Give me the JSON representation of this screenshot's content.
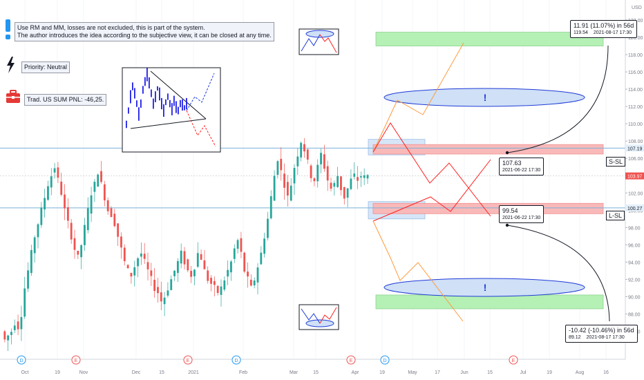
{
  "notes": {
    "system": "Use RM and MM, losses are not excluded, this is part of the system.",
    "author": "The author introduces the idea according to the subjective view, it can be closed at any time.",
    "priority": "Priority: Neutral",
    "pnl": "Trad. US SUM PNL: -46,25."
  },
  "icons": {
    "info": "exclamation-icon",
    "priority": "lightning-icon",
    "pnl": "briefcase-icon",
    "colors": {
      "info": "#2196f3",
      "briefcase": "#e53935"
    }
  },
  "colors": {
    "up": "#26a69a",
    "down": "#ef5350",
    "target_zone": "#b5f0b5",
    "stop_zone": "#f9b9b9",
    "entry_zone": "#cfe2f7",
    "ellipse": "#cfe0f7",
    "ellipse_border": "#1e3ad6",
    "hline": "#79b0d8",
    "bull_path": "#ff9a3c",
    "bear_path": "#ff2020"
  },
  "callouts": {
    "up_target": {
      "main": "11.91 (11.07%) in 56d",
      "price": "119.54",
      "date": "2021-08-17  17:30"
    },
    "up_level": {
      "main": "107.63",
      "date": "2021-06-22  17:30"
    },
    "down_level": {
      "main": "99.54",
      "date": "2021-06-22  17:30"
    },
    "down_target": {
      "main": "-10.42 (-10.46%) in 56d",
      "price": "89.12",
      "date": "2021-08-17  17:30"
    }
  },
  "tags": {
    "s_sl": "S-SL",
    "l_sl": "L-SL",
    "exclaim": "!"
  },
  "chart_data": {
    "type": "candlestick",
    "currency": "USD",
    "y_axis": {
      "range": [
        84,
        124
      ],
      "ticks": [
        86,
        88,
        90,
        92,
        94,
        96,
        98,
        100,
        102,
        104,
        106,
        108,
        110,
        112,
        114,
        116,
        118,
        120,
        122,
        124
      ]
    },
    "x_axis": {
      "ticks": [
        "Oct",
        "19",
        "Nov",
        "Dec",
        "15",
        "2021",
        "Feb",
        "Mar",
        "15",
        "Apr",
        "19",
        "May",
        "17",
        "Jun",
        "15",
        "Jul",
        "19",
        "Aug",
        "16"
      ]
    },
    "price_labels": [
      {
        "value": 107.19,
        "label": "107.19",
        "style": "line"
      },
      {
        "value": 103.97,
        "label": "103.97",
        "style": "last"
      },
      {
        "value": 100.27,
        "label": "100.27",
        "style": "line"
      }
    ],
    "levels": {
      "s_sl": 107.19,
      "l_sl": 100.27,
      "last": 103.97
    },
    "events": [
      "D",
      "E",
      "E",
      "D",
      "E",
      "D",
      "E"
    ],
    "close_series": [
      86,
      85,
      85.5,
      86,
      87,
      86.5,
      88,
      91,
      93,
      95,
      97,
      98.5,
      100,
      101.5,
      103,
      104,
      105,
      103.5,
      102,
      100,
      98.5,
      97,
      95.5,
      94.5,
      96,
      98,
      100,
      102,
      103,
      104.5,
      103,
      101.5,
      100,
      99.5,
      98.5,
      97,
      95.5,
      94,
      93,
      92.5,
      93.5,
      94.5,
      95,
      94,
      93,
      92,
      91,
      90.5,
      89.5,
      90,
      91,
      92,
      93,
      94,
      95,
      94,
      93,
      92.5,
      93.5,
      95,
      94.5,
      93,
      92,
      91.5,
      91,
      90.5,
      91,
      92,
      93,
      94,
      95.5,
      96.5,
      95,
      93,
      92,
      91,
      92,
      93.5,
      95,
      97,
      99,
      101.5,
      104,
      106,
      104.5,
      103,
      101.5,
      103,
      105,
      106.5,
      108,
      107,
      105.5,
      104,
      103.5,
      105,
      106.5,
      105,
      103.5,
      102.5,
      103,
      104,
      102.5,
      101.5,
      102.5,
      103.5,
      104,
      103.5,
      104,
      103.8,
      103.97
    ],
    "zones": [
      {
        "kind": "target",
        "from": 119,
        "to": 120.6
      },
      {
        "kind": "entry",
        "from": 106.4,
        "to": 108.2
      },
      {
        "kind": "stop",
        "from": 106.5,
        "to": 107.6
      },
      {
        "kind": "stop",
        "from": 99.6,
        "to": 100.8
      },
      {
        "kind": "entry",
        "from": 99,
        "to": 101
      },
      {
        "kind": "target",
        "from": 88.6,
        "to": 90.2
      }
    ]
  }
}
